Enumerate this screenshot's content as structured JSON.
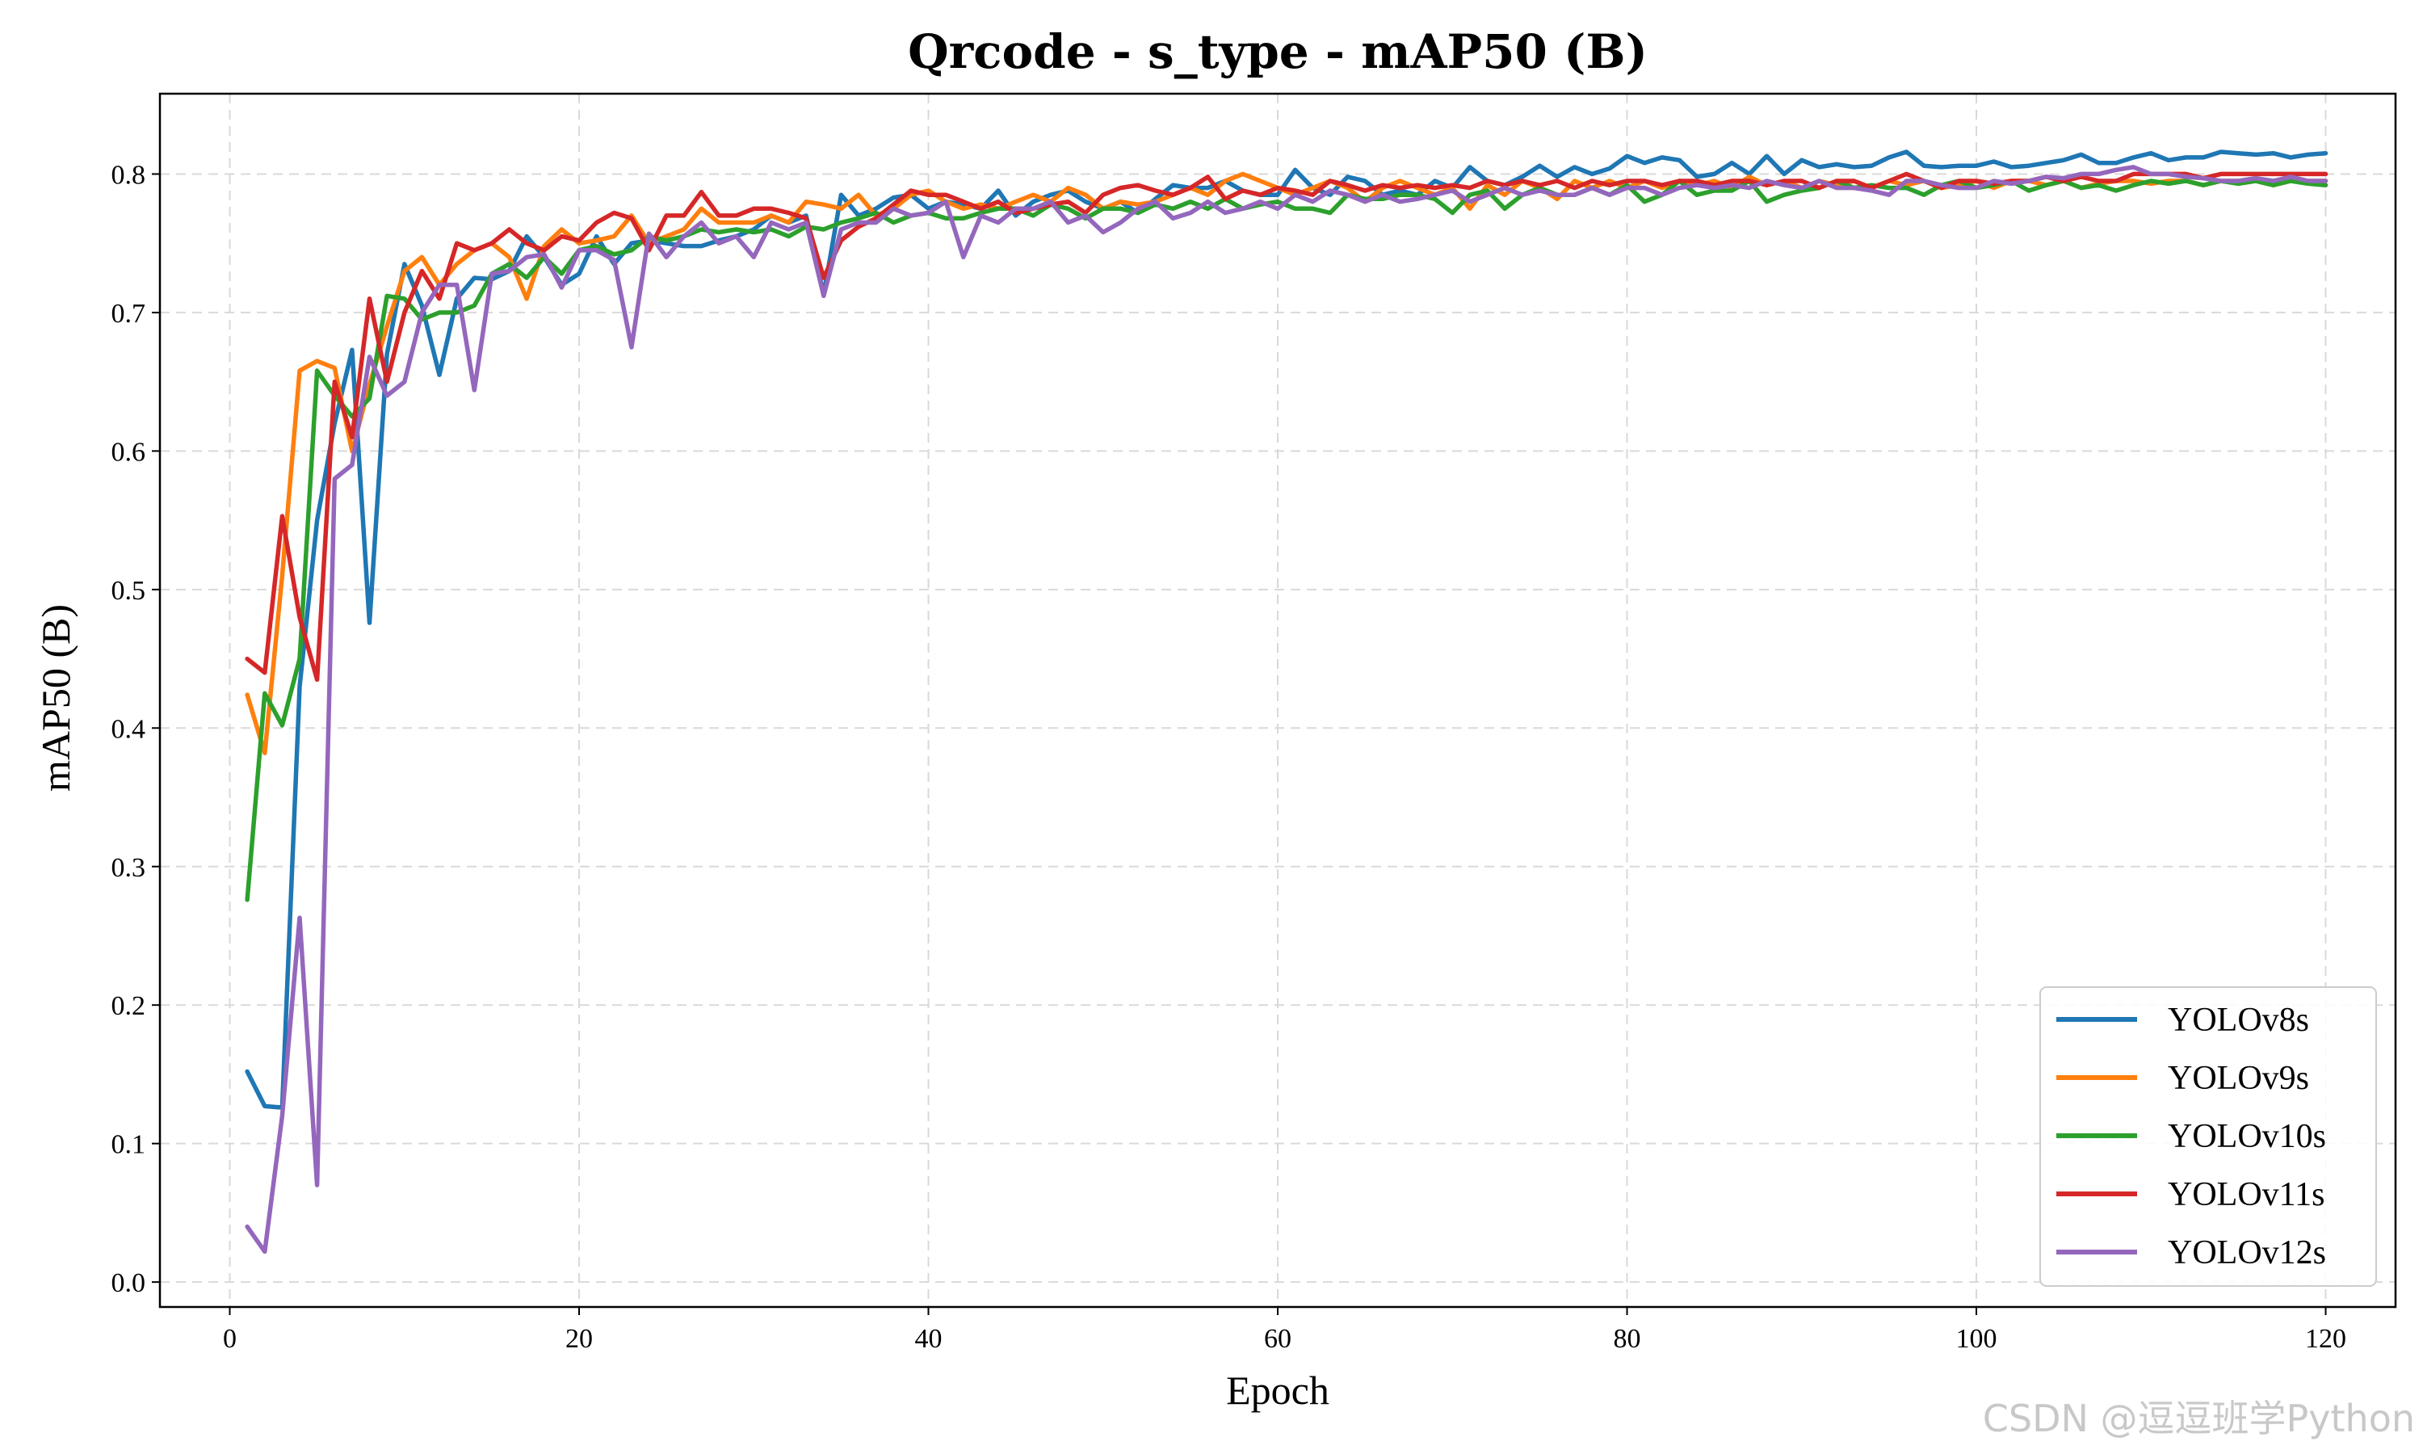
{
  "chart_data": {
    "type": "line",
    "title": "Qrcode - s_type - mAP50 (B)",
    "xlabel": "Epoch",
    "ylabel": "mAP50 (B)",
    "xlim": [
      -4,
      124
    ],
    "ylim": [
      -0.018,
      0.858
    ],
    "xticks": [
      0,
      20,
      40,
      60,
      80,
      100,
      120
    ],
    "yticks": [
      0.0,
      0.1,
      0.2,
      0.3,
      0.4,
      0.5,
      0.6,
      0.7,
      0.8
    ],
    "grid": true,
    "legend_position": "lower-right",
    "x": [
      1,
      2,
      3,
      4,
      5,
      6,
      7,
      8,
      9,
      10,
      11,
      12,
      13,
      14,
      15,
      16,
      17,
      18,
      19,
      20,
      21,
      22,
      23,
      24,
      25,
      26,
      27,
      28,
      29,
      30,
      31,
      32,
      33,
      34,
      35,
      36,
      37,
      38,
      39,
      40,
      41,
      42,
      43,
      44,
      45,
      46,
      47,
      48,
      49,
      50,
      51,
      52,
      53,
      54,
      55,
      56,
      57,
      58,
      59,
      60,
      61,
      62,
      63,
      64,
      65,
      66,
      67,
      68,
      69,
      70,
      71,
      72,
      73,
      74,
      75,
      76,
      77,
      78,
      79,
      80,
      81,
      82,
      83,
      84,
      85,
      86,
      87,
      88,
      89,
      90,
      91,
      92,
      93,
      94,
      95,
      96,
      97,
      98,
      99,
      100,
      101,
      102,
      103,
      104,
      105,
      106,
      107,
      108,
      109,
      110,
      111,
      112,
      113,
      114,
      115,
      116,
      117,
      118,
      119,
      120
    ],
    "series": [
      {
        "name": "YOLOv8s",
        "color": "#1f77b4",
        "values": [
          0.152,
          0.127,
          0.126,
          0.43,
          0.55,
          0.62,
          0.673,
          0.476,
          0.67,
          0.735,
          0.705,
          0.655,
          0.71,
          0.725,
          0.724,
          0.73,
          0.755,
          0.74,
          0.72,
          0.728,
          0.755,
          0.735,
          0.75,
          0.752,
          0.75,
          0.748,
          0.748,
          0.752,
          0.755,
          0.76,
          0.77,
          0.765,
          0.77,
          0.713,
          0.785,
          0.77,
          0.775,
          0.783,
          0.785,
          0.775,
          0.78,
          0.778,
          0.775,
          0.788,
          0.77,
          0.78,
          0.785,
          0.788,
          0.78,
          0.775,
          0.78,
          0.772,
          0.782,
          0.792,
          0.79,
          0.79,
          0.795,
          0.788,
          0.785,
          0.785,
          0.803,
          0.79,
          0.785,
          0.798,
          0.795,
          0.785,
          0.788,
          0.785,
          0.795,
          0.79,
          0.805,
          0.795,
          0.792,
          0.798,
          0.806,
          0.798,
          0.805,
          0.8,
          0.804,
          0.813,
          0.808,
          0.812,
          0.81,
          0.798,
          0.8,
          0.808,
          0.8,
          0.813,
          0.8,
          0.81,
          0.805,
          0.807,
          0.805,
          0.806,
          0.812,
          0.816,
          0.806,
          0.805,
          0.806,
          0.806,
          0.809,
          0.805,
          0.806,
          0.808,
          0.81,
          0.814,
          0.808,
          0.808,
          0.812,
          0.815,
          0.81,
          0.812,
          0.812,
          0.816,
          0.815,
          0.814,
          0.815,
          0.812,
          0.814,
          0.815
        ]
      },
      {
        "name": "YOLOv9s",
        "color": "#ff7f0e",
        "values": [
          0.424,
          0.382,
          0.51,
          0.658,
          0.665,
          0.66,
          0.6,
          0.648,
          0.69,
          0.73,
          0.74,
          0.72,
          0.735,
          0.745,
          0.75,
          0.74,
          0.71,
          0.748,
          0.76,
          0.75,
          0.752,
          0.755,
          0.77,
          0.75,
          0.755,
          0.76,
          0.775,
          0.765,
          0.765,
          0.765,
          0.77,
          0.765,
          0.78,
          0.778,
          0.775,
          0.785,
          0.77,
          0.775,
          0.785,
          0.788,
          0.78,
          0.775,
          0.778,
          0.775,
          0.78,
          0.785,
          0.78,
          0.79,
          0.785,
          0.775,
          0.78,
          0.778,
          0.78,
          0.785,
          0.79,
          0.785,
          0.795,
          0.8,
          0.795,
          0.79,
          0.785,
          0.79,
          0.795,
          0.79,
          0.78,
          0.79,
          0.795,
          0.79,
          0.785,
          0.79,
          0.775,
          0.792,
          0.785,
          0.795,
          0.79,
          0.782,
          0.795,
          0.79,
          0.795,
          0.79,
          0.795,
          0.79,
          0.795,
          0.792,
          0.795,
          0.79,
          0.798,
          0.792,
          0.795,
          0.79,
          0.795,
          0.792,
          0.795,
          0.79,
          0.795,
          0.792,
          0.795,
          0.79,
          0.792,
          0.795,
          0.79,
          0.795,
          0.795,
          0.792,
          0.795,
          0.79,
          0.793,
          0.795,
          0.795,
          0.793,
          0.795,
          0.795,
          0.792,
          0.795,
          0.795,
          0.795,
          0.792,
          0.795,
          0.795,
          0.795
        ]
      },
      {
        "name": "YOLOv10s",
        "color": "#2ca02c",
        "values": [
          0.276,
          0.425,
          0.402,
          0.45,
          0.658,
          0.64,
          0.625,
          0.638,
          0.712,
          0.71,
          0.695,
          0.7,
          0.7,
          0.705,
          0.728,
          0.735,
          0.725,
          0.74,
          0.728,
          0.745,
          0.748,
          0.742,
          0.745,
          0.755,
          0.752,
          0.755,
          0.76,
          0.758,
          0.76,
          0.758,
          0.76,
          0.755,
          0.762,
          0.76,
          0.765,
          0.768,
          0.772,
          0.765,
          0.77,
          0.772,
          0.768,
          0.768,
          0.772,
          0.775,
          0.775,
          0.77,
          0.778,
          0.775,
          0.768,
          0.775,
          0.775,
          0.772,
          0.778,
          0.775,
          0.78,
          0.775,
          0.782,
          0.775,
          0.778,
          0.78,
          0.775,
          0.775,
          0.772,
          0.785,
          0.782,
          0.782,
          0.785,
          0.785,
          0.782,
          0.772,
          0.785,
          0.788,
          0.775,
          0.785,
          0.79,
          0.785,
          0.785,
          0.79,
          0.785,
          0.792,
          0.78,
          0.785,
          0.795,
          0.785,
          0.788,
          0.788,
          0.795,
          0.78,
          0.785,
          0.788,
          0.79,
          0.795,
          0.79,
          0.792,
          0.79,
          0.79,
          0.785,
          0.792,
          0.795,
          0.79,
          0.792,
          0.795,
          0.788,
          0.792,
          0.795,
          0.79,
          0.792,
          0.788,
          0.792,
          0.795,
          0.793,
          0.795,
          0.792,
          0.795,
          0.793,
          0.795,
          0.792,
          0.795,
          0.793,
          0.792
        ]
      },
      {
        "name": "YOLOv11s",
        "color": "#d62728",
        "values": [
          0.45,
          0.44,
          0.553,
          0.48,
          0.435,
          0.65,
          0.61,
          0.71,
          0.65,
          0.7,
          0.73,
          0.71,
          0.75,
          0.745,
          0.75,
          0.76,
          0.75,
          0.745,
          0.755,
          0.752,
          0.765,
          0.772,
          0.768,
          0.745,
          0.77,
          0.77,
          0.787,
          0.77,
          0.77,
          0.775,
          0.775,
          0.772,
          0.768,
          0.725,
          0.752,
          0.762,
          0.768,
          0.778,
          0.788,
          0.785,
          0.785,
          0.78,
          0.775,
          0.78,
          0.772,
          0.775,
          0.778,
          0.78,
          0.772,
          0.785,
          0.79,
          0.792,
          0.788,
          0.785,
          0.79,
          0.798,
          0.782,
          0.788,
          0.785,
          0.79,
          0.788,
          0.785,
          0.795,
          0.792,
          0.788,
          0.792,
          0.79,
          0.792,
          0.79,
          0.792,
          0.79,
          0.795,
          0.792,
          0.795,
          0.792,
          0.795,
          0.79,
          0.795,
          0.792,
          0.795,
          0.795,
          0.792,
          0.795,
          0.795,
          0.792,
          0.795,
          0.795,
          0.792,
          0.795,
          0.795,
          0.79,
          0.795,
          0.795,
          0.79,
          0.795,
          0.8,
          0.795,
          0.79,
          0.795,
          0.795,
          0.793,
          0.795,
          0.795,
          0.798,
          0.795,
          0.798,
          0.795,
          0.795,
          0.8,
          0.8,
          0.8,
          0.8,
          0.797,
          0.8,
          0.8,
          0.8,
          0.8,
          0.8,
          0.8,
          0.8
        ]
      },
      {
        "name": "YOLOv12s",
        "color": "#9467bd",
        "values": [
          0.04,
          0.022,
          0.12,
          0.263,
          0.07,
          0.58,
          0.59,
          0.668,
          0.64,
          0.65,
          0.7,
          0.72,
          0.72,
          0.644,
          0.728,
          0.73,
          0.74,
          0.742,
          0.718,
          0.745,
          0.745,
          0.738,
          0.675,
          0.757,
          0.74,
          0.755,
          0.765,
          0.75,
          0.755,
          0.74,
          0.765,
          0.76,
          0.765,
          0.712,
          0.76,
          0.765,
          0.765,
          0.775,
          0.77,
          0.772,
          0.78,
          0.74,
          0.77,
          0.765,
          0.775,
          0.775,
          0.78,
          0.765,
          0.77,
          0.758,
          0.765,
          0.775,
          0.78,
          0.768,
          0.772,
          0.78,
          0.772,
          0.775,
          0.78,
          0.775,
          0.785,
          0.78,
          0.788,
          0.785,
          0.78,
          0.785,
          0.78,
          0.782,
          0.785,
          0.788,
          0.78,
          0.785,
          0.79,
          0.785,
          0.788,
          0.785,
          0.785,
          0.79,
          0.785,
          0.79,
          0.79,
          0.785,
          0.79,
          0.792,
          0.79,
          0.792,
          0.79,
          0.795,
          0.792,
          0.79,
          0.795,
          0.79,
          0.79,
          0.788,
          0.785,
          0.795,
          0.795,
          0.792,
          0.79,
          0.79,
          0.795,
          0.793,
          0.795,
          0.798,
          0.797,
          0.8,
          0.8,
          0.803,
          0.805,
          0.8,
          0.8,
          0.798,
          0.797,
          0.795,
          0.795,
          0.797,
          0.795,
          0.798,
          0.795,
          0.795
        ]
      }
    ]
  },
  "watermark": "CSDN @逗逗班学Python"
}
